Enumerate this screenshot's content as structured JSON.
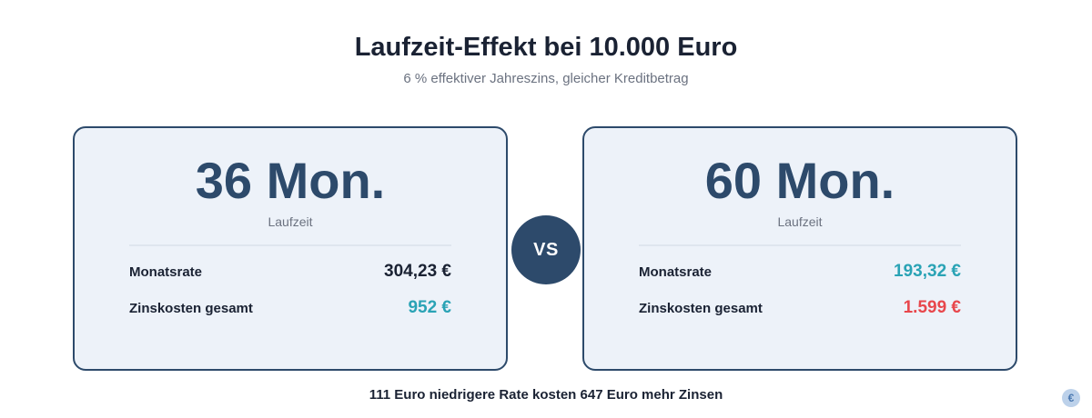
{
  "header": {
    "title": "Laufzeit-Effekt bei 10.000 Euro",
    "subtitle": "6 % effektiver Jahreszins, gleicher Kreditbetrag"
  },
  "cards": [
    {
      "term": "36 Mon.",
      "term_label": "Laufzeit",
      "rows": [
        {
          "label": "Monatsrate",
          "value": "304,23 €"
        },
        {
          "label": "Zinskosten gesamt",
          "value": "952 €"
        }
      ]
    },
    {
      "term": "60 Mon.",
      "term_label": "Laufzeit",
      "rows": [
        {
          "label": "Monatsrate",
          "value": "193,32 €"
        },
        {
          "label": "Zinskosten gesamt",
          "value": "1.599 €"
        }
      ]
    }
  ],
  "vs_label": "VS",
  "footer": "111 Euro niedrigere Rate kosten 647 Euro mehr Zinsen",
  "badge": {
    "icon": "euro-icon",
    "glyph": "€"
  },
  "colors": {
    "primary": "#2d4a6b",
    "card_bg": "#edf2f9",
    "teal": "#2aa3b5",
    "red": "#e8474c"
  }
}
